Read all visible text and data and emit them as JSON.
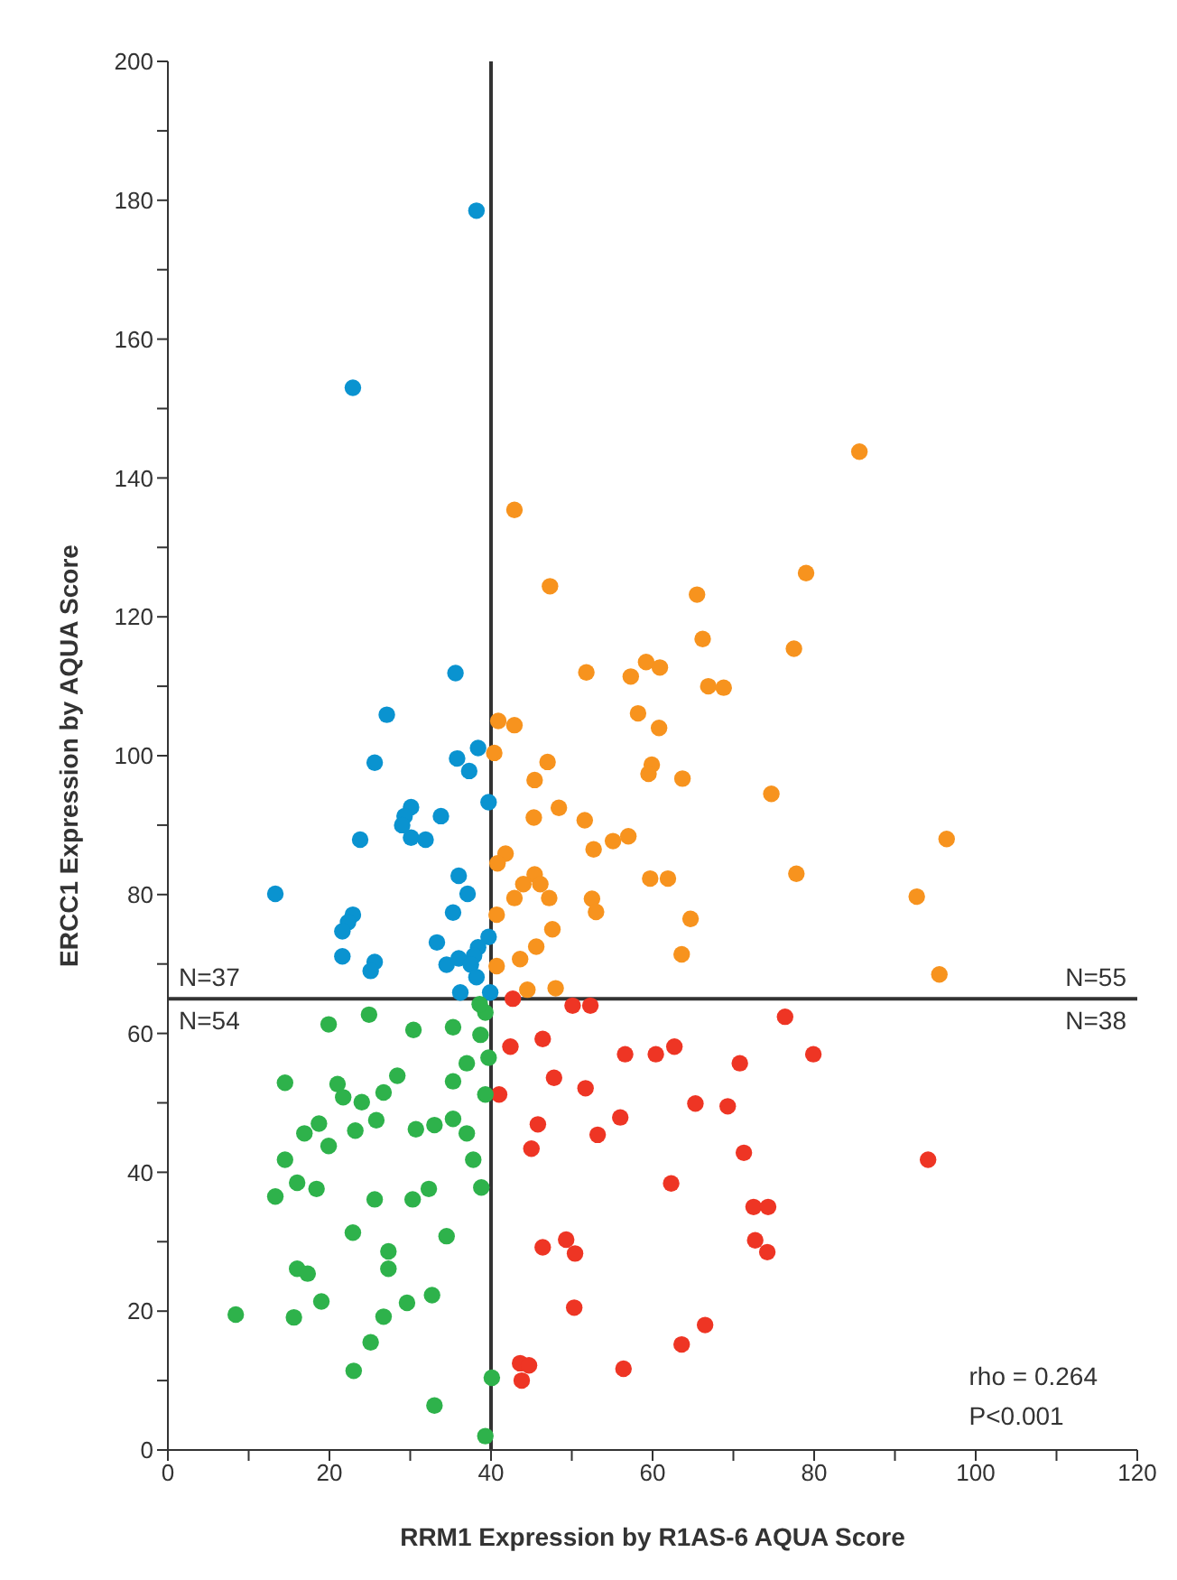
{
  "chart_data": {
    "type": "scatter",
    "xlabel": "RRM1 Expression by R1AS-6 AQUA Score",
    "ylabel": "ERCC1 Expression by AQUA Score",
    "xlim": [
      0,
      120
    ],
    "ylim": [
      0,
      200
    ],
    "xticks": [
      0,
      {
        "value": 10,
        "label": null
      },
      20,
      {
        "value": 30,
        "label": null
      },
      40,
      {
        "value": 50,
        "label": null
      },
      60,
      {
        "value": 70,
        "label": null
      },
      80,
      {
        "value": 90,
        "label": null
      },
      100,
      {
        "value": 110,
        "label": null
      },
      120
    ],
    "yticks": [
      0,
      {
        "value": 10,
        "label": null
      },
      20,
      {
        "value": 30,
        "label": null
      },
      40,
      {
        "value": 50,
        "label": null
      },
      60,
      {
        "value": 70,
        "label": null
      },
      80,
      {
        "value": 90,
        "label": null
      },
      100,
      {
        "value": 110,
        "label": null
      },
      120,
      {
        "value": 130,
        "label": null
      },
      140,
      {
        "value": 150,
        "label": null
      },
      160,
      {
        "value": 170,
        "label": null
      },
      180,
      {
        "value": 190,
        "label": null
      },
      200
    ],
    "grid": false,
    "marker": "circle",
    "series": [
      {
        "color": "#0a93d0",
        "x": [
          38.2,
          22.9,
          35.6,
          27.1,
          38.4,
          35.8,
          37.3,
          25.6,
          39.7,
          30.1,
          29.3,
          29,
          30.1,
          31.9,
          33.8,
          23.8,
          36,
          37.1,
          13.3,
          35.3,
          22.9,
          22.3,
          21.6,
          21.6,
          25.6,
          25.1,
          33.3,
          39.7,
          38.4,
          37.9,
          34.5,
          36,
          37.5,
          38.2,
          36.2,
          39.9
        ],
        "values": [
          178.5,
          153,
          111.9,
          105.9,
          101.1,
          99.6,
          97.8,
          99,
          93.3,
          92.6,
          91.3,
          90,
          88.2,
          87.9,
          91.3,
          87.9,
          82.7,
          80.1,
          80.1,
          77.4,
          77.1,
          76,
          74.7,
          71.1,
          70.3,
          69,
          73.1,
          73.9,
          72.4,
          71.2,
          69.9,
          70.8,
          69.9,
          68.1,
          65.9,
          65.9
        ]
      },
      {
        "color": "#f7931e",
        "x": [
          85.6,
          42.9,
          79,
          47.3,
          65.5,
          66.2,
          77.5,
          51.8,
          57.3,
          59.2,
          60.9,
          66.9,
          68.8,
          58.2,
          60.8,
          40.9,
          42.9,
          40.4,
          47,
          45.4,
          59.9,
          59.5,
          63.7,
          74.7,
          48.4,
          45.3,
          51.6,
          52.7,
          55.1,
          57,
          96.4,
          41.8,
          40.8,
          45.4,
          44,
          46.1,
          42.9,
          47.2,
          59.7,
          61.9,
          77.8,
          52.5,
          53,
          92.7,
          40.7,
          64.7,
          47.6,
          45.6,
          43.6,
          40.7,
          63.6,
          95.5,
          44.5,
          48
        ],
        "values": [
          143.8,
          135.4,
          126.3,
          124.4,
          123.2,
          116.8,
          115.4,
          112,
          111.4,
          113.5,
          112.7,
          110,
          109.8,
          106.1,
          104,
          105,
          104.4,
          100.4,
          99.1,
          96.5,
          98.7,
          97.4,
          96.7,
          94.5,
          92.5,
          91.1,
          90.7,
          86.5,
          87.7,
          88.4,
          88,
          85.9,
          84.5,
          82.9,
          81.5,
          81.5,
          79.5,
          79.5,
          82.3,
          82.3,
          83,
          79.4,
          77.5,
          79.7,
          77.1,
          76.5,
          75,
          72.5,
          70.7,
          69.7,
          71.4,
          68.5,
          66.3,
          66.5
        ]
      },
      {
        "color": "#ee3524",
        "x": [
          42.7,
          50.1,
          52.3,
          76.4,
          42.4,
          46.4,
          56.6,
          60.4,
          62.7,
          79.9,
          70.8,
          47.8,
          51.7,
          41,
          65.3,
          69.3,
          56,
          45.8,
          53.2,
          45,
          71.3,
          94.1,
          62.3,
          72.5,
          74.3,
          72.7,
          74.2,
          46.4,
          49.3,
          50.4,
          50.3,
          66.5,
          63.6,
          43.6,
          44.7,
          43.8,
          56.4
        ],
        "values": [
          65,
          64,
          64,
          62.4,
          58.1,
          59.2,
          57,
          57,
          58.1,
          57,
          55.7,
          53.6,
          52.1,
          51.2,
          49.9,
          49.5,
          47.9,
          46.9,
          45.4,
          43.4,
          42.8,
          41.8,
          38.4,
          35,
          35,
          30.2,
          28.5,
          29.2,
          30.3,
          28.3,
          20.5,
          18,
          15.2,
          12.5,
          12.2,
          10,
          11.7
        ]
      },
      {
        "color": "#2eb24b",
        "x": [
          19.9,
          24.9,
          30.4,
          35.3,
          39.3,
          38.7,
          39.7,
          37,
          28.4,
          35.3,
          14.5,
          21,
          21.7,
          24,
          26.7,
          39.3,
          18.7,
          16.9,
          23.2,
          25.8,
          30.7,
          33,
          35.3,
          37,
          19.9,
          14.5,
          37.8,
          16,
          18.4,
          13.3,
          25.6,
          30.3,
          32.3,
          38.8,
          22.9,
          34.5,
          27.3,
          27.3,
          16,
          17.3,
          19,
          29.6,
          32.7,
          8.4,
          15.6,
          26.7,
          25.1,
          23,
          40.1,
          33,
          39.3,
          38.6
        ],
        "values": [
          61.3,
          62.7,
          60.5,
          60.9,
          63,
          59.8,
          56.5,
          55.7,
          53.9,
          53.1,
          52.9,
          52.7,
          50.8,
          50.1,
          51.5,
          51.2,
          47,
          45.6,
          46,
          47.5,
          46.2,
          46.8,
          47.7,
          45.6,
          43.8,
          41.8,
          41.8,
          38.5,
          37.6,
          36.5,
          36.1,
          36.1,
          37.6,
          37.8,
          31.3,
          30.8,
          28.6,
          26.1,
          26.1,
          25.4,
          21.4,
          21.2,
          22.3,
          19.5,
          19.1,
          19.2,
          15.5,
          11.4,
          10.4,
          6.4,
          2,
          64.2
        ]
      }
    ],
    "ref_lines": [
      {
        "axis": "x",
        "value": 40,
        "color": "#333333"
      },
      {
        "axis": "y",
        "value": 65,
        "color": "#333333"
      }
    ],
    "annotations": [
      "N=37",
      "N=54",
      "N=55",
      "N=38",
      "rho = 0.264",
      "P<0.001"
    ]
  }
}
